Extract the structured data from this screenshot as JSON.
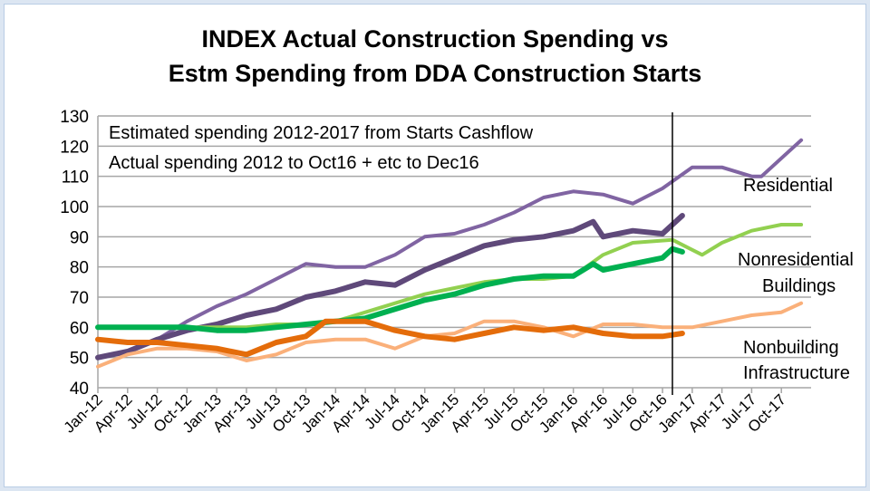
{
  "chart_data": {
    "type": "line",
    "title_lines": [
      "INDEX Actual Construction Spending vs",
      "Estm Spending from DDA Construction Starts"
    ],
    "xlabel": "",
    "ylabel": "",
    "ylim": [
      40,
      130
    ],
    "yticks": [
      40,
      50,
      60,
      70,
      80,
      90,
      100,
      110,
      120,
      130
    ],
    "grid": true,
    "x_months": [
      "Jan-12",
      "Feb-12",
      "Mar-12",
      "Apr-12",
      "May-12",
      "Jun-12",
      "Jul-12",
      "Aug-12",
      "Sep-12",
      "Oct-12",
      "Nov-12",
      "Dec-12",
      "Jan-13",
      "Feb-13",
      "Mar-13",
      "Apr-13",
      "May-13",
      "Jun-13",
      "Jul-13",
      "Aug-13",
      "Sep-13",
      "Oct-13",
      "Nov-13",
      "Dec-13",
      "Jan-14",
      "Feb-14",
      "Mar-14",
      "Apr-14",
      "May-14",
      "Jun-14",
      "Jul-14",
      "Aug-14",
      "Sep-14",
      "Oct-14",
      "Nov-14",
      "Dec-14",
      "Jan-15",
      "Feb-15",
      "Mar-15",
      "Apr-15",
      "May-15",
      "Jun-15",
      "Jul-15",
      "Aug-15",
      "Sep-15",
      "Oct-15",
      "Nov-15",
      "Dec-15",
      "Jan-16",
      "Feb-16",
      "Mar-16",
      "Apr-16",
      "May-16",
      "Jun-16",
      "Jul-16",
      "Aug-16",
      "Sep-16",
      "Oct-16",
      "Nov-16",
      "Dec-16",
      "Jan-17",
      "Feb-17",
      "Mar-17",
      "Apr-17",
      "May-17",
      "Jun-17",
      "Jul-17",
      "Aug-17",
      "Sep-17",
      "Oct-17",
      "Nov-17",
      "Dec-17"
    ],
    "xtick_labels": [
      "Jan-12",
      "Apr-12",
      "Jul-12",
      "Oct-12",
      "Jan-13",
      "Apr-13",
      "Jul-13",
      "Oct-13",
      "Jan-14",
      "Apr-14",
      "Jul-14",
      "Oct-14",
      "Jan-15",
      "Apr-15",
      "Jul-15",
      "Oct-15",
      "Jan-16",
      "Apr-16",
      "Jul-16",
      "Oct-16",
      "Jan-17",
      "Apr-17",
      "Jul-17",
      "Oct-17"
    ],
    "vertical_marker": "Nov-16",
    "annotations": [
      "Estimated spending 2012-2017 from Starts Cashflow",
      "Actual spending 2012 to Oct16 + etc to Dec16"
    ],
    "series_labels": [
      {
        "text": "Residential",
        "lines": [
          "Residential"
        ]
      },
      {
        "text": "Nonresidential Buildings",
        "lines": [
          "Nonresidential",
          "Buildings"
        ]
      },
      {
        "text": "Nonbuilding Infrastructure",
        "lines": [
          "Nonbuilding",
          "Infrastructure"
        ]
      }
    ],
    "series": [
      {
        "group": "Residential",
        "kind": "estimated",
        "color": "#8064a2",
        "points": [
          [
            "Jan-12",
            50
          ],
          [
            "Apr-12",
            52
          ],
          [
            "Jul-12",
            56
          ],
          [
            "Oct-12",
            62
          ],
          [
            "Jan-13",
            67
          ],
          [
            "Apr-13",
            71
          ],
          [
            "Jul-13",
            76
          ],
          [
            "Oct-13",
            81
          ],
          [
            "Jan-14",
            80
          ],
          [
            "Apr-14",
            80
          ],
          [
            "Jul-14",
            84
          ],
          [
            "Oct-14",
            90
          ],
          [
            "Jan-15",
            91
          ],
          [
            "Apr-15",
            94
          ],
          [
            "Jul-15",
            98
          ],
          [
            "Oct-15",
            103
          ],
          [
            "Jan-16",
            105
          ],
          [
            "Apr-16",
            104
          ],
          [
            "Jul-16",
            101
          ],
          [
            "Oct-16",
            106
          ],
          [
            "Jan-17",
            113
          ],
          [
            "Apr-17",
            113
          ],
          [
            "Jul-17",
            110
          ],
          [
            "Aug-17",
            110
          ],
          [
            "Oct-17",
            116
          ],
          [
            "Dec-17",
            122
          ]
        ]
      },
      {
        "group": "Residential",
        "kind": "actual",
        "color": "#5f497a",
        "points": [
          [
            "Jan-12",
            50
          ],
          [
            "Apr-12",
            52
          ],
          [
            "Jul-12",
            56
          ],
          [
            "Oct-12",
            59
          ],
          [
            "Jan-13",
            61
          ],
          [
            "Apr-13",
            64
          ],
          [
            "Jul-13",
            66
          ],
          [
            "Oct-13",
            70
          ],
          [
            "Jan-14",
            72
          ],
          [
            "Apr-14",
            75
          ],
          [
            "Jul-14",
            74
          ],
          [
            "Oct-14",
            79
          ],
          [
            "Jan-15",
            83
          ],
          [
            "Apr-15",
            87
          ],
          [
            "Jul-15",
            89
          ],
          [
            "Oct-15",
            90
          ],
          [
            "Jan-16",
            92
          ],
          [
            "Mar-16",
            95
          ],
          [
            "Apr-16",
            90
          ],
          [
            "Jul-16",
            92
          ],
          [
            "Oct-16",
            91
          ],
          [
            "Dec-16",
            97
          ]
        ]
      },
      {
        "group": "Nonresidential Buildings",
        "kind": "estimated",
        "color": "#92d050",
        "points": [
          [
            "Jan-12",
            60
          ],
          [
            "Apr-12",
            60
          ],
          [
            "Jul-12",
            60
          ],
          [
            "Oct-12",
            60
          ],
          [
            "Jan-13",
            60
          ],
          [
            "Apr-13",
            60
          ],
          [
            "Jul-13",
            61
          ],
          [
            "Oct-13",
            61
          ],
          [
            "Jan-14",
            62
          ],
          [
            "Apr-14",
            65
          ],
          [
            "Jul-14",
            68
          ],
          [
            "Oct-14",
            71
          ],
          [
            "Jan-15",
            73
          ],
          [
            "Apr-15",
            75
          ],
          [
            "Jul-15",
            76
          ],
          [
            "Oct-15",
            76
          ],
          [
            "Jan-16",
            77
          ],
          [
            "Apr-16",
            84
          ],
          [
            "Jul-16",
            88
          ],
          [
            "Nov-16",
            89
          ],
          [
            "Feb-17",
            84
          ],
          [
            "Apr-17",
            88
          ],
          [
            "Jul-17",
            92
          ],
          [
            "Oct-17",
            94
          ],
          [
            "Dec-17",
            94
          ]
        ]
      },
      {
        "group": "Nonresidential Buildings",
        "kind": "actual",
        "color": "#00b050",
        "points": [
          [
            "Jan-12",
            60
          ],
          [
            "Apr-12",
            60
          ],
          [
            "Jul-12",
            60
          ],
          [
            "Oct-12",
            60
          ],
          [
            "Jan-13",
            59
          ],
          [
            "Apr-13",
            59
          ],
          [
            "Jul-13",
            60
          ],
          [
            "Oct-13",
            61
          ],
          [
            "Jan-14",
            62
          ],
          [
            "Apr-14",
            63
          ],
          [
            "Jul-14",
            66
          ],
          [
            "Oct-14",
            69
          ],
          [
            "Jan-15",
            71
          ],
          [
            "Apr-15",
            74
          ],
          [
            "Jul-15",
            76
          ],
          [
            "Oct-15",
            77
          ],
          [
            "Jan-16",
            77
          ],
          [
            "Mar-16",
            81
          ],
          [
            "Apr-16",
            79
          ],
          [
            "Jul-16",
            81
          ],
          [
            "Oct-16",
            83
          ],
          [
            "Nov-16",
            86
          ],
          [
            "Dec-16",
            85
          ]
        ]
      },
      {
        "group": "Nonbuilding Infrastructure",
        "kind": "estimated",
        "color": "#fab07a",
        "points": [
          [
            "Jan-12",
            47
          ],
          [
            "Apr-12",
            51
          ],
          [
            "Jul-12",
            53
          ],
          [
            "Oct-12",
            53
          ],
          [
            "Jan-13",
            52
          ],
          [
            "Apr-13",
            49
          ],
          [
            "Jul-13",
            51
          ],
          [
            "Oct-13",
            55
          ],
          [
            "Jan-14",
            56
          ],
          [
            "Apr-14",
            56
          ],
          [
            "Jul-14",
            53
          ],
          [
            "Oct-14",
            57
          ],
          [
            "Jan-15",
            58
          ],
          [
            "Apr-15",
            62
          ],
          [
            "Jul-15",
            62
          ],
          [
            "Oct-15",
            60
          ],
          [
            "Jan-16",
            57
          ],
          [
            "Apr-16",
            61
          ],
          [
            "Jul-16",
            61
          ],
          [
            "Oct-16",
            60
          ],
          [
            "Jan-17",
            60
          ],
          [
            "Apr-17",
            62
          ],
          [
            "Jul-17",
            64
          ],
          [
            "Oct-17",
            65
          ],
          [
            "Dec-17",
            68
          ]
        ]
      },
      {
        "group": "Nonbuilding Infrastructure",
        "kind": "actual",
        "color": "#e46c0a",
        "points": [
          [
            "Jan-12",
            56
          ],
          [
            "Apr-12",
            55
          ],
          [
            "Jul-12",
            55
          ],
          [
            "Oct-12",
            54
          ],
          [
            "Jan-13",
            53
          ],
          [
            "Apr-13",
            51
          ],
          [
            "Jul-13",
            55
          ],
          [
            "Oct-13",
            57
          ],
          [
            "Dec-13",
            62
          ],
          [
            "Apr-14",
            62
          ],
          [
            "Jul-14",
            59
          ],
          [
            "Oct-14",
            57
          ],
          [
            "Jan-15",
            56
          ],
          [
            "Apr-15",
            58
          ],
          [
            "Jul-15",
            60
          ],
          [
            "Oct-15",
            59
          ],
          [
            "Jan-16",
            60
          ],
          [
            "Apr-16",
            58
          ],
          [
            "Jul-16",
            57
          ],
          [
            "Oct-16",
            57
          ],
          [
            "Dec-16",
            58
          ]
        ]
      }
    ]
  }
}
